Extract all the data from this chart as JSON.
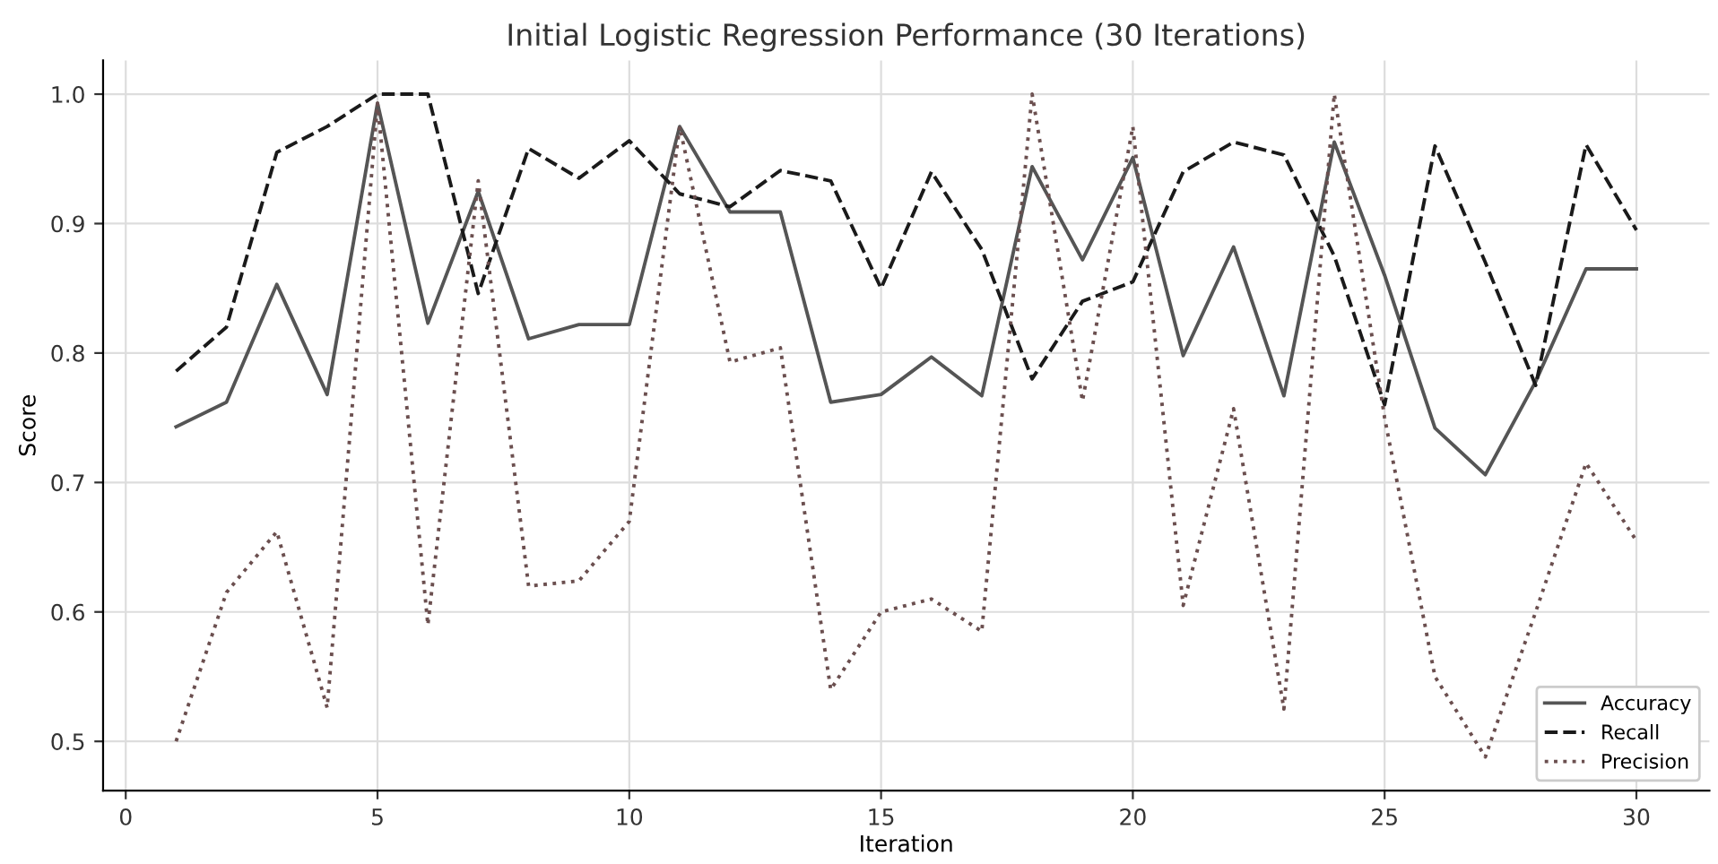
{
  "chart_data": {
    "type": "line",
    "title": "Initial Logistic Regression Performance (30 Iterations)",
    "xlabel": "Iteration",
    "ylabel": "Score",
    "x": [
      1,
      2,
      3,
      4,
      5,
      6,
      7,
      8,
      9,
      10,
      11,
      12,
      13,
      14,
      15,
      16,
      17,
      18,
      19,
      20,
      21,
      22,
      23,
      24,
      25,
      26,
      27,
      28,
      29,
      30
    ],
    "series": [
      {
        "name": "Accuracy",
        "color": "#555555",
        "line_style": "solid",
        "values": [
          0.743,
          0.762,
          0.853,
          0.768,
          0.993,
          0.823,
          0.925,
          0.811,
          0.822,
          0.822,
          0.975,
          0.909,
          0.909,
          0.762,
          0.768,
          0.797,
          0.767,
          0.944,
          0.872,
          0.951,
          0.798,
          0.882,
          0.767,
          0.963,
          0.86,
          0.742,
          0.706,
          0.778,
          0.865,
          0.865
        ]
      },
      {
        "name": "Recall",
        "color": "#1a1a1a",
        "line_style": "dashed",
        "values": [
          0.786,
          0.82,
          0.955,
          0.975,
          1.0,
          1.0,
          0.846,
          0.958,
          0.935,
          0.964,
          0.923,
          0.913,
          0.941,
          0.933,
          0.85,
          0.94,
          0.88,
          0.78,
          0.84,
          0.855,
          0.94,
          0.963,
          0.953,
          0.875,
          0.76,
          0.96,
          0.87,
          0.775,
          0.961,
          0.895
        ]
      },
      {
        "name": "Precision",
        "color": "#6b4f4f",
        "line_style": "dotted",
        "values": [
          0.5,
          0.615,
          0.662,
          0.526,
          0.993,
          0.59,
          0.933,
          0.62,
          0.624,
          0.67,
          0.975,
          0.793,
          0.804,
          0.54,
          0.6,
          0.61,
          0.585,
          1.0,
          0.763,
          0.975,
          0.605,
          0.757,
          0.525,
          1.0,
          0.75,
          0.55,
          0.488,
          0.6,
          0.715,
          0.655
        ]
      }
    ],
    "xlim": [
      -0.45,
      31.45
    ],
    "ylim": [
      0.462,
      1.026
    ],
    "xticks": [
      0,
      5,
      10,
      15,
      20,
      25,
      30
    ],
    "yticks": [
      {
        "value": 0.5,
        "label": "0.5"
      },
      {
        "value": 0.6,
        "label": "0.6"
      },
      {
        "value": 0.7,
        "label": "0.7"
      },
      {
        "value": 0.8,
        "label": "0.8"
      },
      {
        "value": 0.9,
        "label": "0.9"
      },
      {
        "value": 1.0,
        "label": "1.0"
      }
    ],
    "grid": true,
    "legend": "lower right",
    "marker": "none"
  }
}
